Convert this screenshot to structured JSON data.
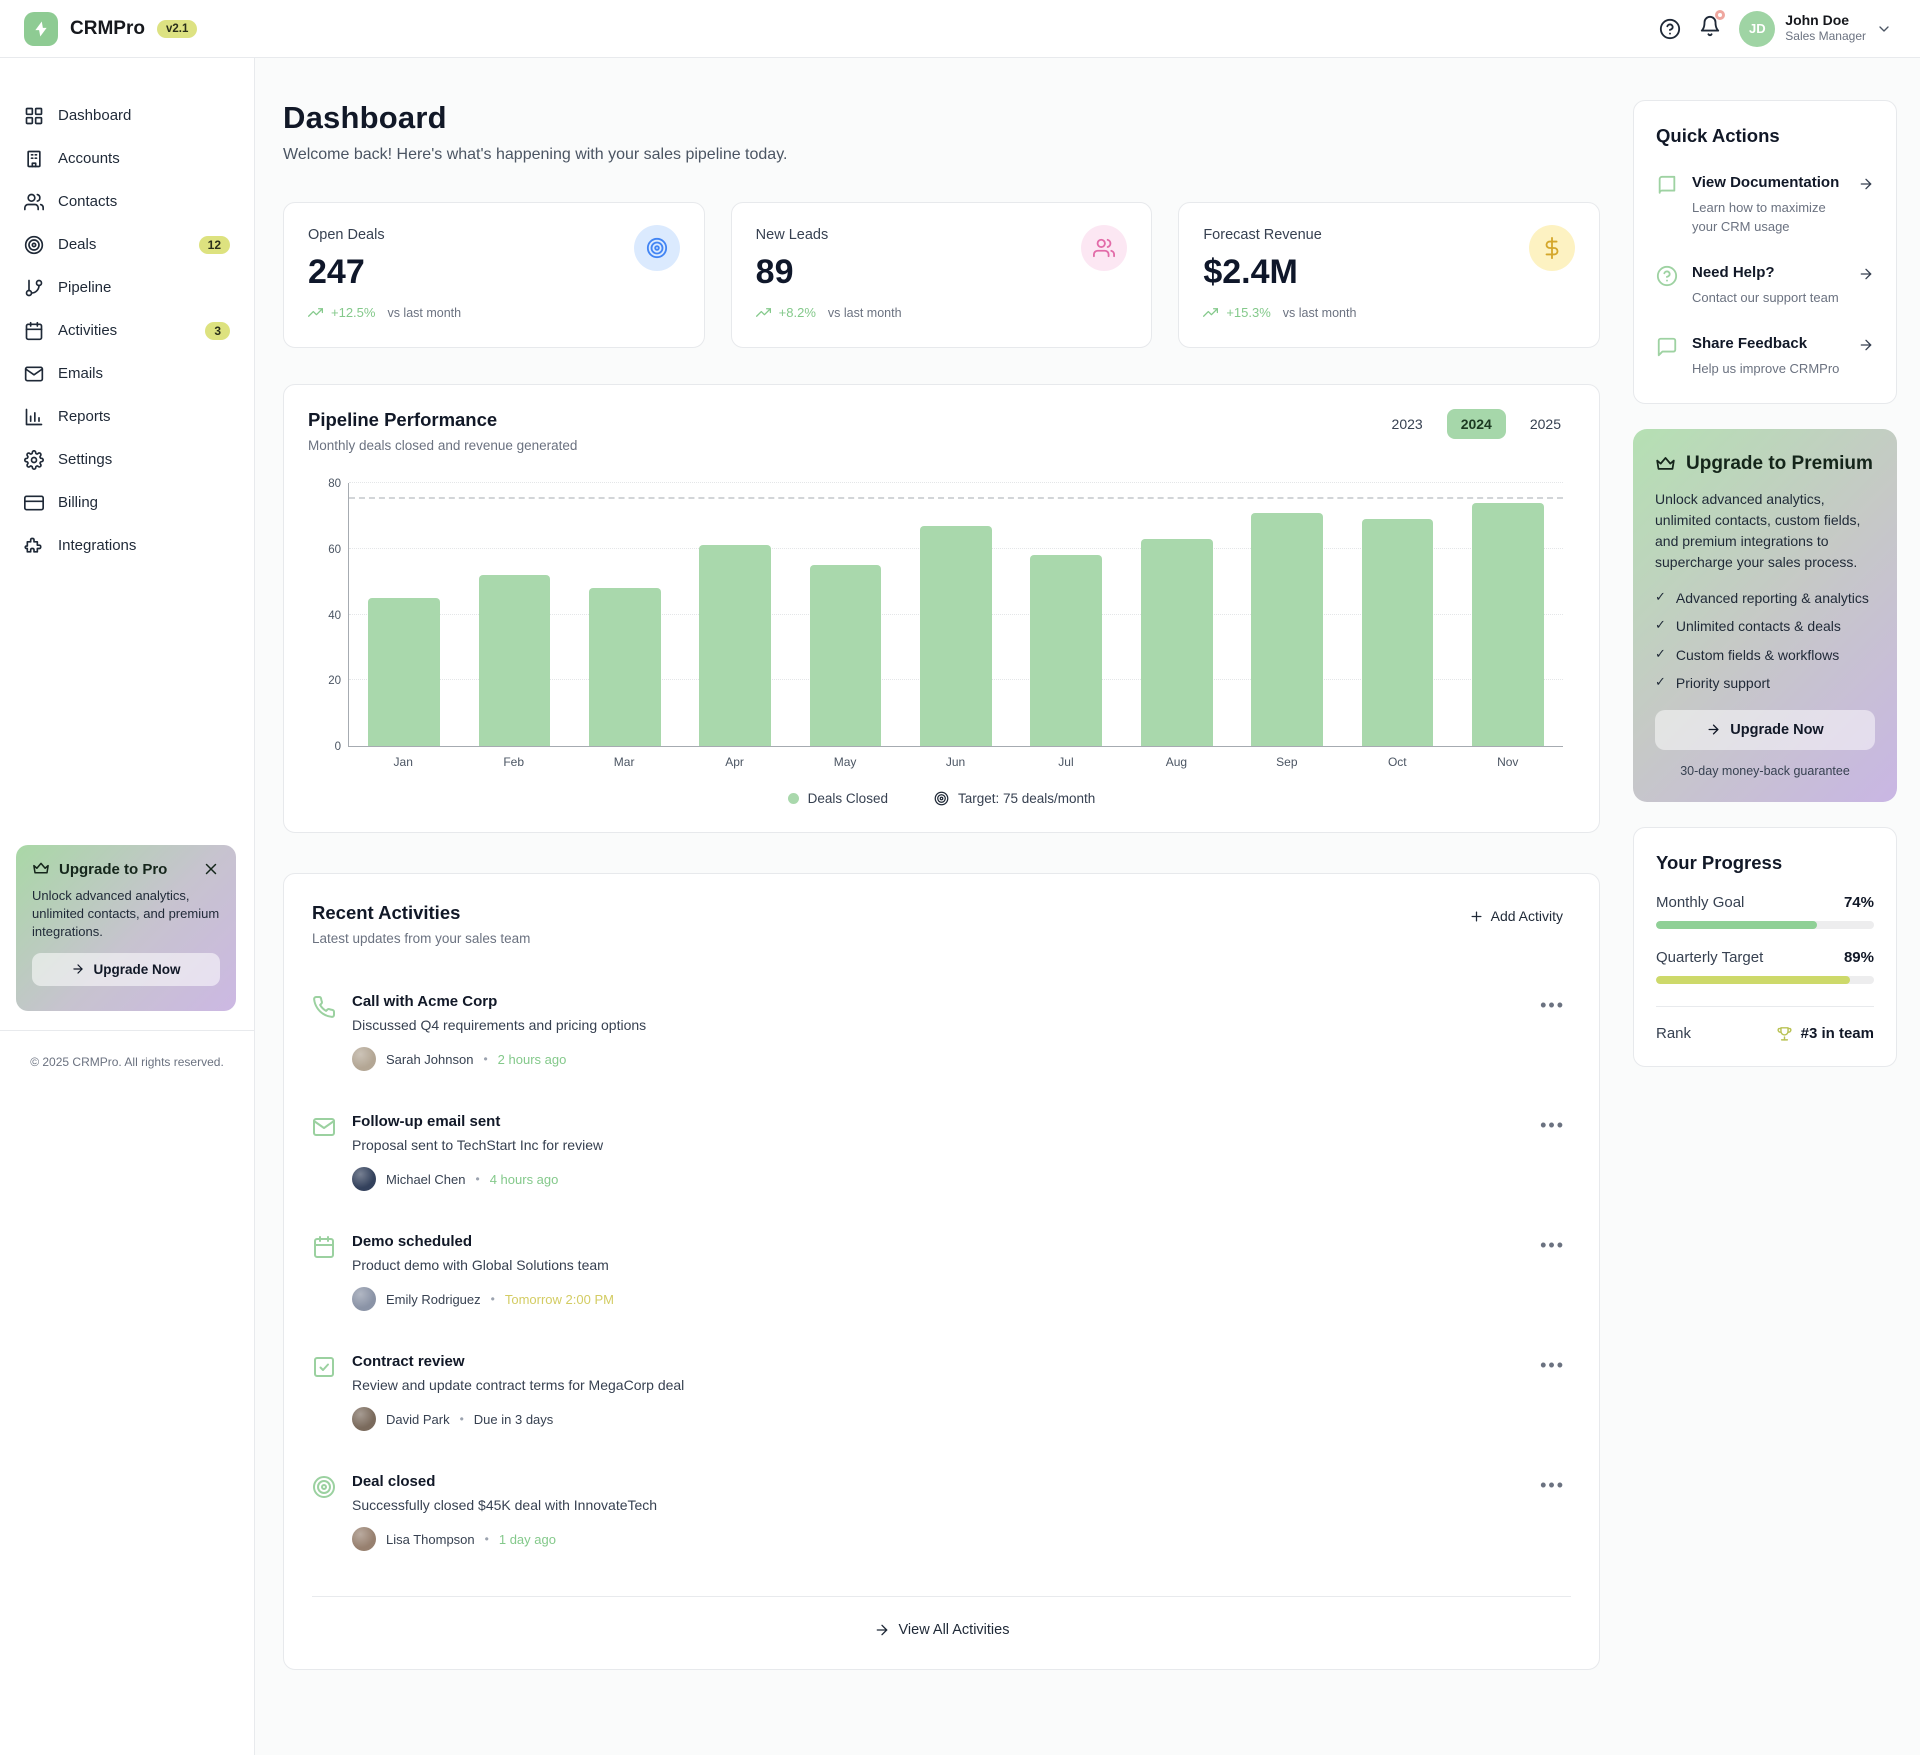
{
  "app": {
    "name": "CRMPro",
    "version": "v2.1",
    "logo_icon": "bolt-icon"
  },
  "header": {
    "help_icon": "help-icon",
    "bell_icon": "bell-icon",
    "user": {
      "initials": "JD",
      "name": "John Doe",
      "role": "Sales Manager"
    }
  },
  "sidebar": {
    "items": [
      {
        "label": "Dashboard",
        "icon": "grid-icon"
      },
      {
        "label": "Accounts",
        "icon": "building-icon"
      },
      {
        "label": "Contacts",
        "icon": "users-icon"
      },
      {
        "label": "Deals",
        "icon": "target-icon",
        "badge": "12"
      },
      {
        "label": "Pipeline",
        "icon": "branch-icon"
      },
      {
        "label": "Activities",
        "icon": "calendar-icon",
        "badge": "3"
      },
      {
        "label": "Emails",
        "icon": "mail-icon"
      },
      {
        "label": "Reports",
        "icon": "chart-icon"
      },
      {
        "label": "Settings",
        "icon": "gear-icon"
      },
      {
        "label": "Billing",
        "icon": "card-icon"
      },
      {
        "label": "Integrations",
        "icon": "puzzle-icon"
      }
    ],
    "upgrade_card": {
      "icon": "crown-icon",
      "title": "Upgrade to Pro",
      "body": "Unlock advanced analytics, unlimited contacts, and premium integrations.",
      "cta": "Upgrade Now"
    },
    "copyright": "© 2025 CRMPro. All rights reserved."
  },
  "main": {
    "title": "Dashboard",
    "subtitle": "Welcome back! Here's what's happening with your sales pipeline today.",
    "stats": [
      {
        "label": "Open Deals",
        "value": "247",
        "trend": "+12.5%",
        "trend_note": "vs last month",
        "icon": "target-icon",
        "icon_color": "#4285f4",
        "icon_bg": "#dbeafe"
      },
      {
        "label": "New Leads",
        "value": "89",
        "trend": "+8.2%",
        "trend_note": "vs last month",
        "icon": "users-icon",
        "icon_color": "#e26ba8",
        "icon_bg": "#fce7f3"
      },
      {
        "label": "Forecast Revenue",
        "value": "$2.4M",
        "trend": "+15.3%",
        "trend_note": "vs last month",
        "icon": "dollar-icon",
        "icon_color": "#d4a72c",
        "icon_bg": "#fdf2c2"
      }
    ],
    "activities": {
      "title": "Recent Activities",
      "subtitle": "Latest updates from your sales team",
      "add_button": "Add Activity",
      "items": [
        {
          "icon": "phone-icon",
          "title": "Call with Acme Corp",
          "desc": "Discussed Q4 requirements and pricing options",
          "user": "Sarah Johnson",
          "time": "2 hours ago",
          "time_color": "green"
        },
        {
          "icon": "mail-icon",
          "title": "Follow-up email sent",
          "desc": "Proposal sent to TechStart Inc for review",
          "user": "Michael Chen",
          "time": "4 hours ago",
          "time_color": "green"
        },
        {
          "icon": "calendar-icon",
          "title": "Demo scheduled",
          "desc": "Product demo with Global Solutions team",
          "user": "Emily Rodriguez",
          "time": "Tomorrow 2:00 PM",
          "time_color": "yellow"
        },
        {
          "icon": "check-icon",
          "title": "Contract review",
          "desc": "Review and update contract terms for MegaCorp deal",
          "user": "David Park",
          "time": "Due in 3 days",
          "time_color": "dark"
        },
        {
          "icon": "target-icon",
          "title": "Deal closed",
          "desc": "Successfully closed $45K deal with InnovateTech",
          "user": "Lisa Thompson",
          "time": "1 day ago",
          "time_color": "green"
        }
      ],
      "footer_link": "View All Activities"
    }
  },
  "chart_data": {
    "type": "bar",
    "title": "Pipeline Performance",
    "subtitle": "Monthly deals closed and revenue generated",
    "year_tabs": [
      "2023",
      "2024",
      "2025"
    ],
    "selected_year": "2024",
    "categories": [
      "Jan",
      "Feb",
      "Mar",
      "Apr",
      "May",
      "Jun",
      "Jul",
      "Aug",
      "Sep",
      "Oct",
      "Nov"
    ],
    "values": [
      45,
      52,
      48,
      61,
      55,
      67,
      58,
      63,
      71,
      69,
      74
    ],
    "target": 75,
    "ylim": [
      0,
      80
    ],
    "yticks": [
      0,
      20,
      40,
      60,
      80
    ],
    "bar_color": "#a9d8ac",
    "grid": true,
    "legend": [
      {
        "icon": "dot",
        "label": "Deals Closed"
      },
      {
        "icon": "target-icon",
        "label": "Target: 75 deals/month"
      }
    ]
  },
  "quick_actions": {
    "title": "Quick Actions",
    "items": [
      {
        "icon": "book-icon",
        "title": "View Documentation",
        "desc": "Learn how to maximize your CRM usage"
      },
      {
        "icon": "help-icon",
        "title": "Need Help?",
        "desc": "Contact our support team"
      },
      {
        "icon": "chat-icon",
        "title": "Share Feedback",
        "desc": "Help us improve CRMPro"
      }
    ]
  },
  "premium": {
    "icon": "crown-icon",
    "title": "Upgrade to Premium",
    "body": "Unlock advanced analytics, unlimited contacts, custom fields, and premium integrations to supercharge your sales process.",
    "features": [
      "Advanced reporting & analytics",
      "Unlimited contacts & deals",
      "Custom fields & workflows",
      "Priority support"
    ],
    "cta": "Upgrade Now",
    "note": "30-day money-back guarantee"
  },
  "progress": {
    "title": "Your Progress",
    "bars": [
      {
        "label": "Monthly Goal",
        "value": "74%",
        "pct": 74,
        "color": "#8fd096"
      },
      {
        "label": "Quarterly Target",
        "value": "89%",
        "pct": 89,
        "color": "#cdd96a"
      }
    ],
    "rank_label": "Rank",
    "rank_icon": "trophy-icon",
    "rank_value": "#3 in team"
  }
}
